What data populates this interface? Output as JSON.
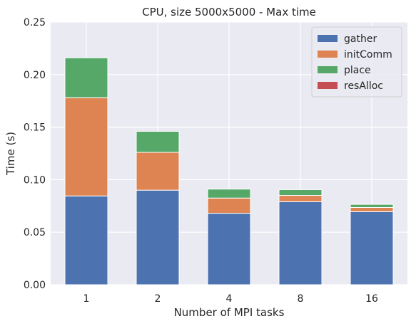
{
  "chart_data": {
    "type": "bar",
    "stacked": true,
    "title": "CPU, size 5000x5000 - Max time",
    "xlabel": "Number of MPI tasks",
    "ylabel": "Time (s)",
    "categories": [
      "1",
      "2",
      "4",
      "8",
      "16"
    ],
    "ylim": [
      0,
      0.25
    ],
    "yticks": [
      "0.00",
      "0.05",
      "0.10",
      "0.15",
      "0.20",
      "0.25"
    ],
    "grid": true,
    "legend_position": "top-right",
    "background": "#eaeaf2",
    "series": [
      {
        "name": "gather",
        "color": "#4c72b0",
        "values": [
          0.0845,
          0.09,
          0.068,
          0.079,
          0.0695
        ]
      },
      {
        "name": "initComm",
        "color": "#dd8452",
        "values": [
          0.0935,
          0.036,
          0.0145,
          0.006,
          0.004
        ]
      },
      {
        "name": "place",
        "color": "#55a868",
        "values": [
          0.038,
          0.02,
          0.0085,
          0.0055,
          0.003
        ]
      },
      {
        "name": "resAlloc",
        "color": "#c44e52",
        "values": [
          0.0,
          0.0,
          0.0,
          0.0,
          0.0
        ]
      }
    ]
  }
}
